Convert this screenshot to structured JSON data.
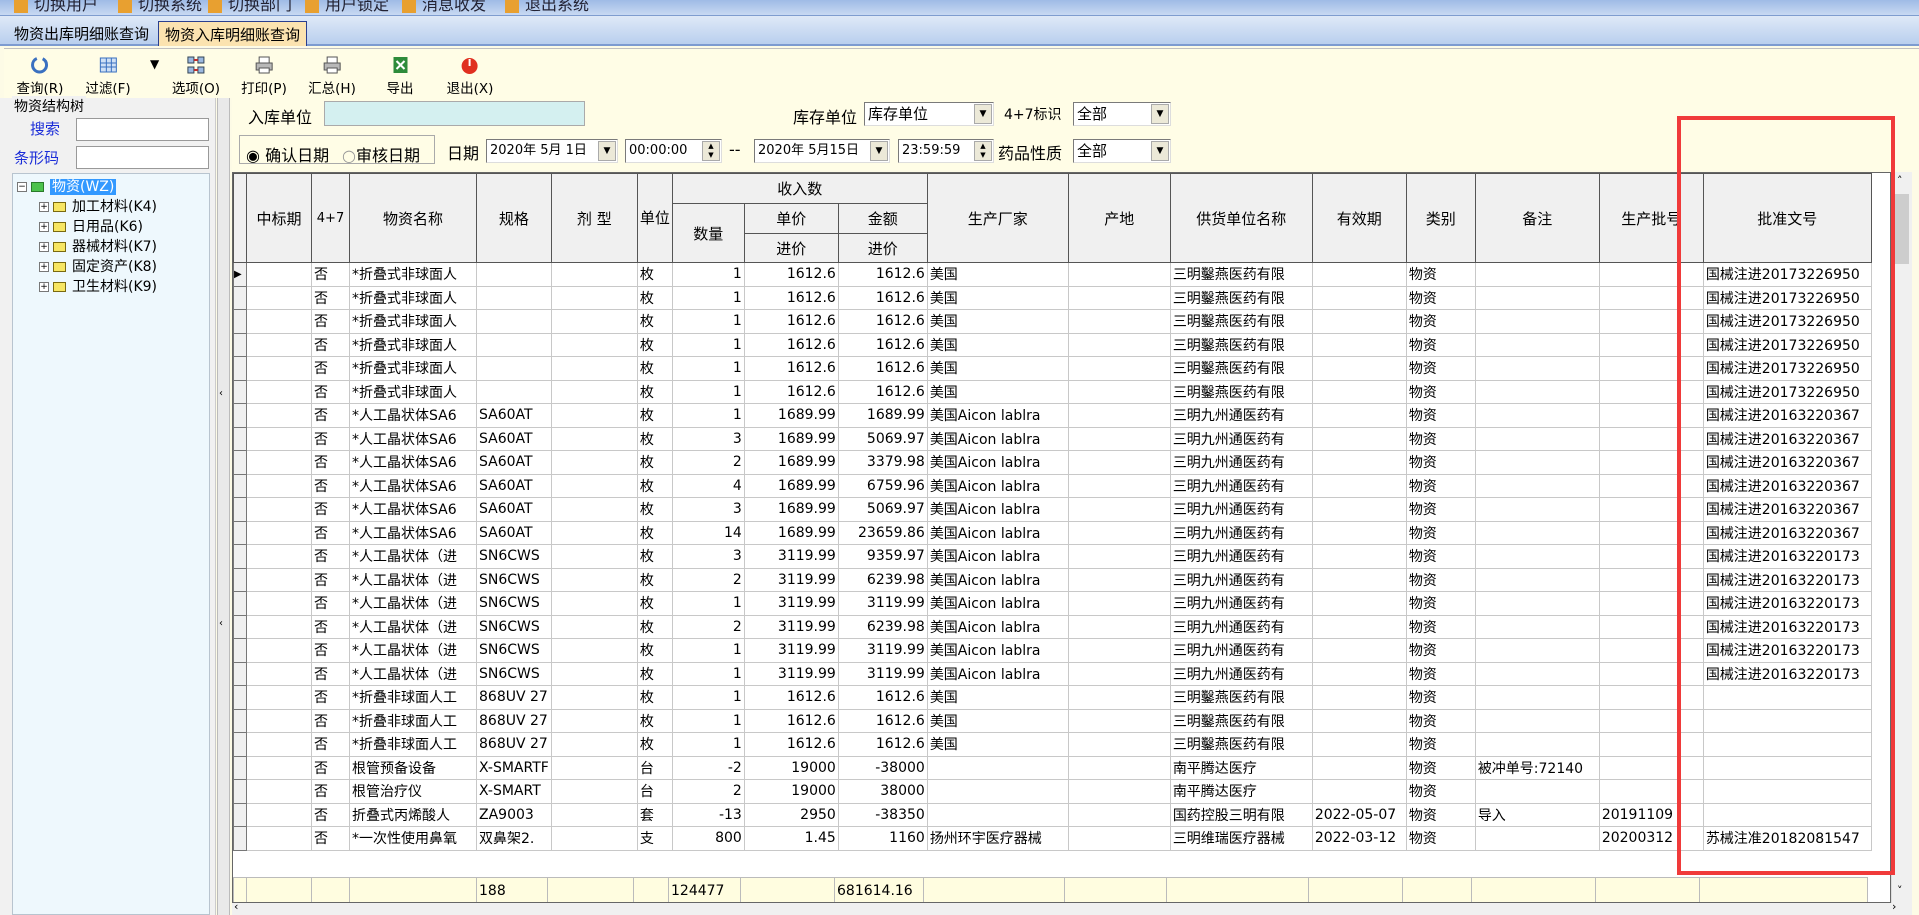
{
  "menubar": [
    "切换用户",
    "切换系统",
    "切换部门",
    "用户锁定",
    "消息收发",
    "退出系统"
  ],
  "tabs": [
    {
      "label": "物资出库明细账查询",
      "active": false
    },
    {
      "label": "物资入库明细账查询",
      "active": true
    }
  ],
  "toolbar": {
    "query": "查询(R)",
    "filter": "过滤(F)",
    "options": "选项(O)",
    "print": "打印(P)",
    "summary": "汇总(H)",
    "export": "导出",
    "exit": "退出(X)"
  },
  "left": {
    "group_title": "物资结构树",
    "search_label": "搜索",
    "search_value": "",
    "barcode_label": "条形码",
    "barcode_value": "",
    "tree": {
      "root": "物资(WZ)",
      "children": [
        "加工材料(K4)",
        "日用品(K6)",
        "器械材料(K7)",
        "固定资产(K8)",
        "卫生材料(K9)"
      ]
    }
  },
  "filter": {
    "in_unit_label": "入库单位",
    "in_unit_value": "",
    "stock_unit_label": "库存单位",
    "stock_unit_value": "库存单位",
    "flag47_label": "4+7标识",
    "flag47_value": "全部",
    "radio_confirm": "确认日期",
    "radio_audit": "审核日期",
    "radio_selected": "确认日期",
    "date_label": "日期",
    "date_from": "2020年 5月 1日",
    "time_from": "00:00:00",
    "range_sep": "--",
    "date_to": "2020年 5月15日",
    "time_to": "23:59:59",
    "drug_nature_label": "药品性质",
    "drug_nature_value": "全部"
  },
  "grid": {
    "headers": {
      "bid": "中标期",
      "f47": "4+7",
      "name": "物资名称",
      "spec": "规格",
      "form": "剂 型",
      "unit": "单位",
      "income_group": "收入数",
      "qty": "数量",
      "price": "单价",
      "price_sub": "进价",
      "amount": "金额",
      "amount_sub": "进价",
      "maker": "生产厂家",
      "origin": "产地",
      "supplier": "供货单位名称",
      "expiry": "有效期",
      "category": "类别",
      "note": "备注",
      "batch": "生产批号",
      "approval": "批准文号"
    },
    "rows": [
      [
        "",
        "否",
        "*折叠式非球面人",
        "",
        "",
        "枚",
        "1",
        "1612.6",
        "1612.6",
        "美国",
        "",
        "三明鑿燕医药有限",
        "",
        "物资",
        "",
        "",
        "国械注进20173226950"
      ],
      [
        "",
        "否",
        "*折叠式非球面人",
        "",
        "",
        "枚",
        "1",
        "1612.6",
        "1612.6",
        "美国",
        "",
        "三明鑿燕医药有限",
        "",
        "物资",
        "",
        "",
        "国械注进20173226950"
      ],
      [
        "",
        "否",
        "*折叠式非球面人",
        "",
        "",
        "枚",
        "1",
        "1612.6",
        "1612.6",
        "美国",
        "",
        "三明鑿燕医药有限",
        "",
        "物资",
        "",
        "",
        "国械注进20173226950"
      ],
      [
        "",
        "否",
        "*折叠式非球面人",
        "",
        "",
        "枚",
        "1",
        "1612.6",
        "1612.6",
        "美国",
        "",
        "三明鑿燕医药有限",
        "",
        "物资",
        "",
        "",
        "国械注进20173226950"
      ],
      [
        "",
        "否",
        "*折叠式非球面人",
        "",
        "",
        "枚",
        "1",
        "1612.6",
        "1612.6",
        "美国",
        "",
        "三明鑿燕医药有限",
        "",
        "物资",
        "",
        "",
        "国械注进20173226950"
      ],
      [
        "",
        "否",
        "*折叠式非球面人",
        "",
        "",
        "枚",
        "1",
        "1612.6",
        "1612.6",
        "美国",
        "",
        "三明鑿燕医药有限",
        "",
        "物资",
        "",
        "",
        "国械注进20173226950"
      ],
      [
        "",
        "否",
        "*人工晶状体SA6",
        "SA60AT",
        "",
        "枚",
        "1",
        "1689.99",
        "1689.99",
        "美国Aicon lablra",
        "",
        "三明九州通医药有",
        "",
        "物资",
        "",
        "",
        "国械注进20163220367"
      ],
      [
        "",
        "否",
        "*人工晶状体SA6",
        "SA60AT",
        "",
        "枚",
        "3",
        "1689.99",
        "5069.97",
        "美国Aicon lablra",
        "",
        "三明九州通医药有",
        "",
        "物资",
        "",
        "",
        "国械注进20163220367"
      ],
      [
        "",
        "否",
        "*人工晶状体SA6",
        "SA60AT",
        "",
        "枚",
        "2",
        "1689.99",
        "3379.98",
        "美国Aicon lablra",
        "",
        "三明九州通医药有",
        "",
        "物资",
        "",
        "",
        "国械注进20163220367"
      ],
      [
        "",
        "否",
        "*人工晶状体SA6",
        "SA60AT",
        "",
        "枚",
        "4",
        "1689.99",
        "6759.96",
        "美国Aicon lablra",
        "",
        "三明九州通医药有",
        "",
        "物资",
        "",
        "",
        "国械注进20163220367"
      ],
      [
        "",
        "否",
        "*人工晶状体SA6",
        "SA60AT",
        "",
        "枚",
        "3",
        "1689.99",
        "5069.97",
        "美国Aicon lablra",
        "",
        "三明九州通医药有",
        "",
        "物资",
        "",
        "",
        "国械注进20163220367"
      ],
      [
        "",
        "否",
        "*人工晶状体SA6",
        "SA60AT",
        "",
        "枚",
        "14",
        "1689.99",
        "23659.86",
        "美国Aicon lablra",
        "",
        "三明九州通医药有",
        "",
        "物资",
        "",
        "",
        "国械注进20163220367"
      ],
      [
        "",
        "否",
        "*人工晶状体（进",
        "SN6CWS",
        "",
        "枚",
        "3",
        "3119.99",
        "9359.97",
        "美国Aicon lablra",
        "",
        "三明九州通医药有",
        "",
        "物资",
        "",
        "",
        "国械注进20163220173"
      ],
      [
        "",
        "否",
        "*人工晶状体（进",
        "SN6CWS",
        "",
        "枚",
        "2",
        "3119.99",
        "6239.98",
        "美国Aicon lablra",
        "",
        "三明九州通医药有",
        "",
        "物资",
        "",
        "",
        "国械注进20163220173"
      ],
      [
        "",
        "否",
        "*人工晶状体（进",
        "SN6CWS",
        "",
        "枚",
        "1",
        "3119.99",
        "3119.99",
        "美国Aicon lablra",
        "",
        "三明九州通医药有",
        "",
        "物资",
        "",
        "",
        "国械注进20163220173"
      ],
      [
        "",
        "否",
        "*人工晶状体（进",
        "SN6CWS",
        "",
        "枚",
        "2",
        "3119.99",
        "6239.98",
        "美国Aicon lablra",
        "",
        "三明九州通医药有",
        "",
        "物资",
        "",
        "",
        "国械注进20163220173"
      ],
      [
        "",
        "否",
        "*人工晶状体（进",
        "SN6CWS",
        "",
        "枚",
        "1",
        "3119.99",
        "3119.99",
        "美国Aicon lablra",
        "",
        "三明九州通医药有",
        "",
        "物资",
        "",
        "",
        "国械注进20163220173"
      ],
      [
        "",
        "否",
        "*人工晶状体（进",
        "SN6CWS",
        "",
        "枚",
        "1",
        "3119.99",
        "3119.99",
        "美国Aicon lablra",
        "",
        "三明九州通医药有",
        "",
        "物资",
        "",
        "",
        "国械注进20163220173"
      ],
      [
        "",
        "否",
        "*折叠非球面人工",
        "868UV 27",
        "",
        "枚",
        "1",
        "1612.6",
        "1612.6",
        "美国",
        "",
        "三明鑿燕医药有限",
        "",
        "物资",
        "",
        "",
        ""
      ],
      [
        "",
        "否",
        "*折叠非球面人工",
        "868UV 27",
        "",
        "枚",
        "1",
        "1612.6",
        "1612.6",
        "美国",
        "",
        "三明鑿燕医药有限",
        "",
        "物资",
        "",
        "",
        ""
      ],
      [
        "",
        "否",
        "*折叠非球面人工",
        "868UV 27",
        "",
        "枚",
        "1",
        "1612.6",
        "1612.6",
        "美国",
        "",
        "三明鑿燕医药有限",
        "",
        "物资",
        "",
        "",
        ""
      ],
      [
        "",
        "否",
        "根管预备设备",
        "X-SMARTF",
        "",
        "台",
        "-2",
        "19000",
        "-38000",
        "",
        "",
        "南平腾达医疗",
        "",
        "物资",
        "被冲单号:72140",
        "",
        ""
      ],
      [
        "",
        "否",
        "根管治疗仪",
        "X-SMART",
        "",
        "台",
        "2",
        "19000",
        "38000",
        "",
        "",
        "南平腾达医疗",
        "",
        "物资",
        "",
        "",
        ""
      ],
      [
        "",
        "否",
        "折叠式丙烯酸人",
        "ZA9003",
        "",
        "套",
        "-13",
        "2950",
        "-38350",
        "",
        "",
        "国药控股三明有限",
        "2022-05-07",
        "物资",
        "导入",
        "20191109",
        ""
      ],
      [
        "",
        "否",
        "*一次性使用鼻氧",
        "双鼻架2.",
        "",
        "支",
        "800",
        "1.45",
        "1160",
        "扬州环宇医疗器械",
        "",
        "三明维瑞医疗器械",
        "2022-03-12",
        "物资",
        "",
        "20200312",
        "苏械注准20182081547"
      ]
    ],
    "totals": {
      "spec": "188",
      "qty": "124477",
      "amount": "681614.16"
    }
  },
  "colors": {
    "highlight_box": "#f03a3a",
    "tab_active": "#fbe3b0",
    "tree_selected": "#3399ff",
    "footer_row": "#fffde0"
  }
}
